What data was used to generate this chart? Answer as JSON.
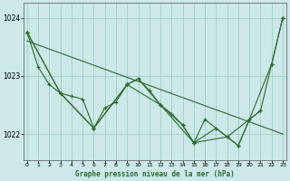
{
  "title": "Graphe pression niveau de la mer (hPa)",
  "bg_color": "#cce8e8",
  "grid_color": "#99ccbb",
  "line_color": "#2d6a2d",
  "x_ticks": [
    0,
    1,
    2,
    3,
    4,
    5,
    6,
    7,
    8,
    9,
    10,
    11,
    12,
    13,
    14,
    15,
    16,
    17,
    18,
    19,
    20,
    21,
    22,
    23
  ],
  "ylim": [
    1021.55,
    1024.25
  ],
  "yticks": [
    1022,
    1023,
    1024
  ],
  "xlim": [
    -0.3,
    23.3
  ],
  "series_main_x": [
    0,
    1,
    2,
    3,
    4,
    5,
    6,
    7,
    8,
    9,
    10,
    11,
    12,
    13,
    14,
    15,
    16,
    17,
    18,
    19,
    20,
    21,
    22,
    23
  ],
  "series_main_y": [
    1023.75,
    1023.15,
    1022.85,
    1022.7,
    1022.65,
    1022.6,
    1022.1,
    1022.45,
    1022.55,
    1022.85,
    1022.95,
    1022.75,
    1022.5,
    1022.35,
    1022.15,
    1021.85,
    1022.25,
    1022.1,
    1021.95,
    1021.8,
    1022.25,
    1022.4,
    1023.2,
    1024.0
  ],
  "series_6h_x": [
    0,
    3,
    6,
    9,
    12,
    15,
    18,
    21
  ],
  "series_6h_y": [
    1023.75,
    1022.7,
    1022.1,
    1022.85,
    1022.5,
    1021.85,
    1021.95,
    1022.4
  ],
  "series_3h_x": [
    0,
    3,
    6,
    9,
    10,
    12,
    14,
    15,
    17,
    19,
    20,
    22,
    23
  ],
  "series_3h_y": [
    1023.75,
    1022.7,
    1022.1,
    1022.85,
    1022.95,
    1022.5,
    1022.15,
    1021.85,
    1022.1,
    1021.8,
    1022.25,
    1023.2,
    1024.0
  ],
  "trend_x": [
    0,
    23
  ],
  "trend_y": [
    1023.6,
    1022.0
  ],
  "figsize": [
    3.2,
    2.0
  ],
  "dpi": 100
}
